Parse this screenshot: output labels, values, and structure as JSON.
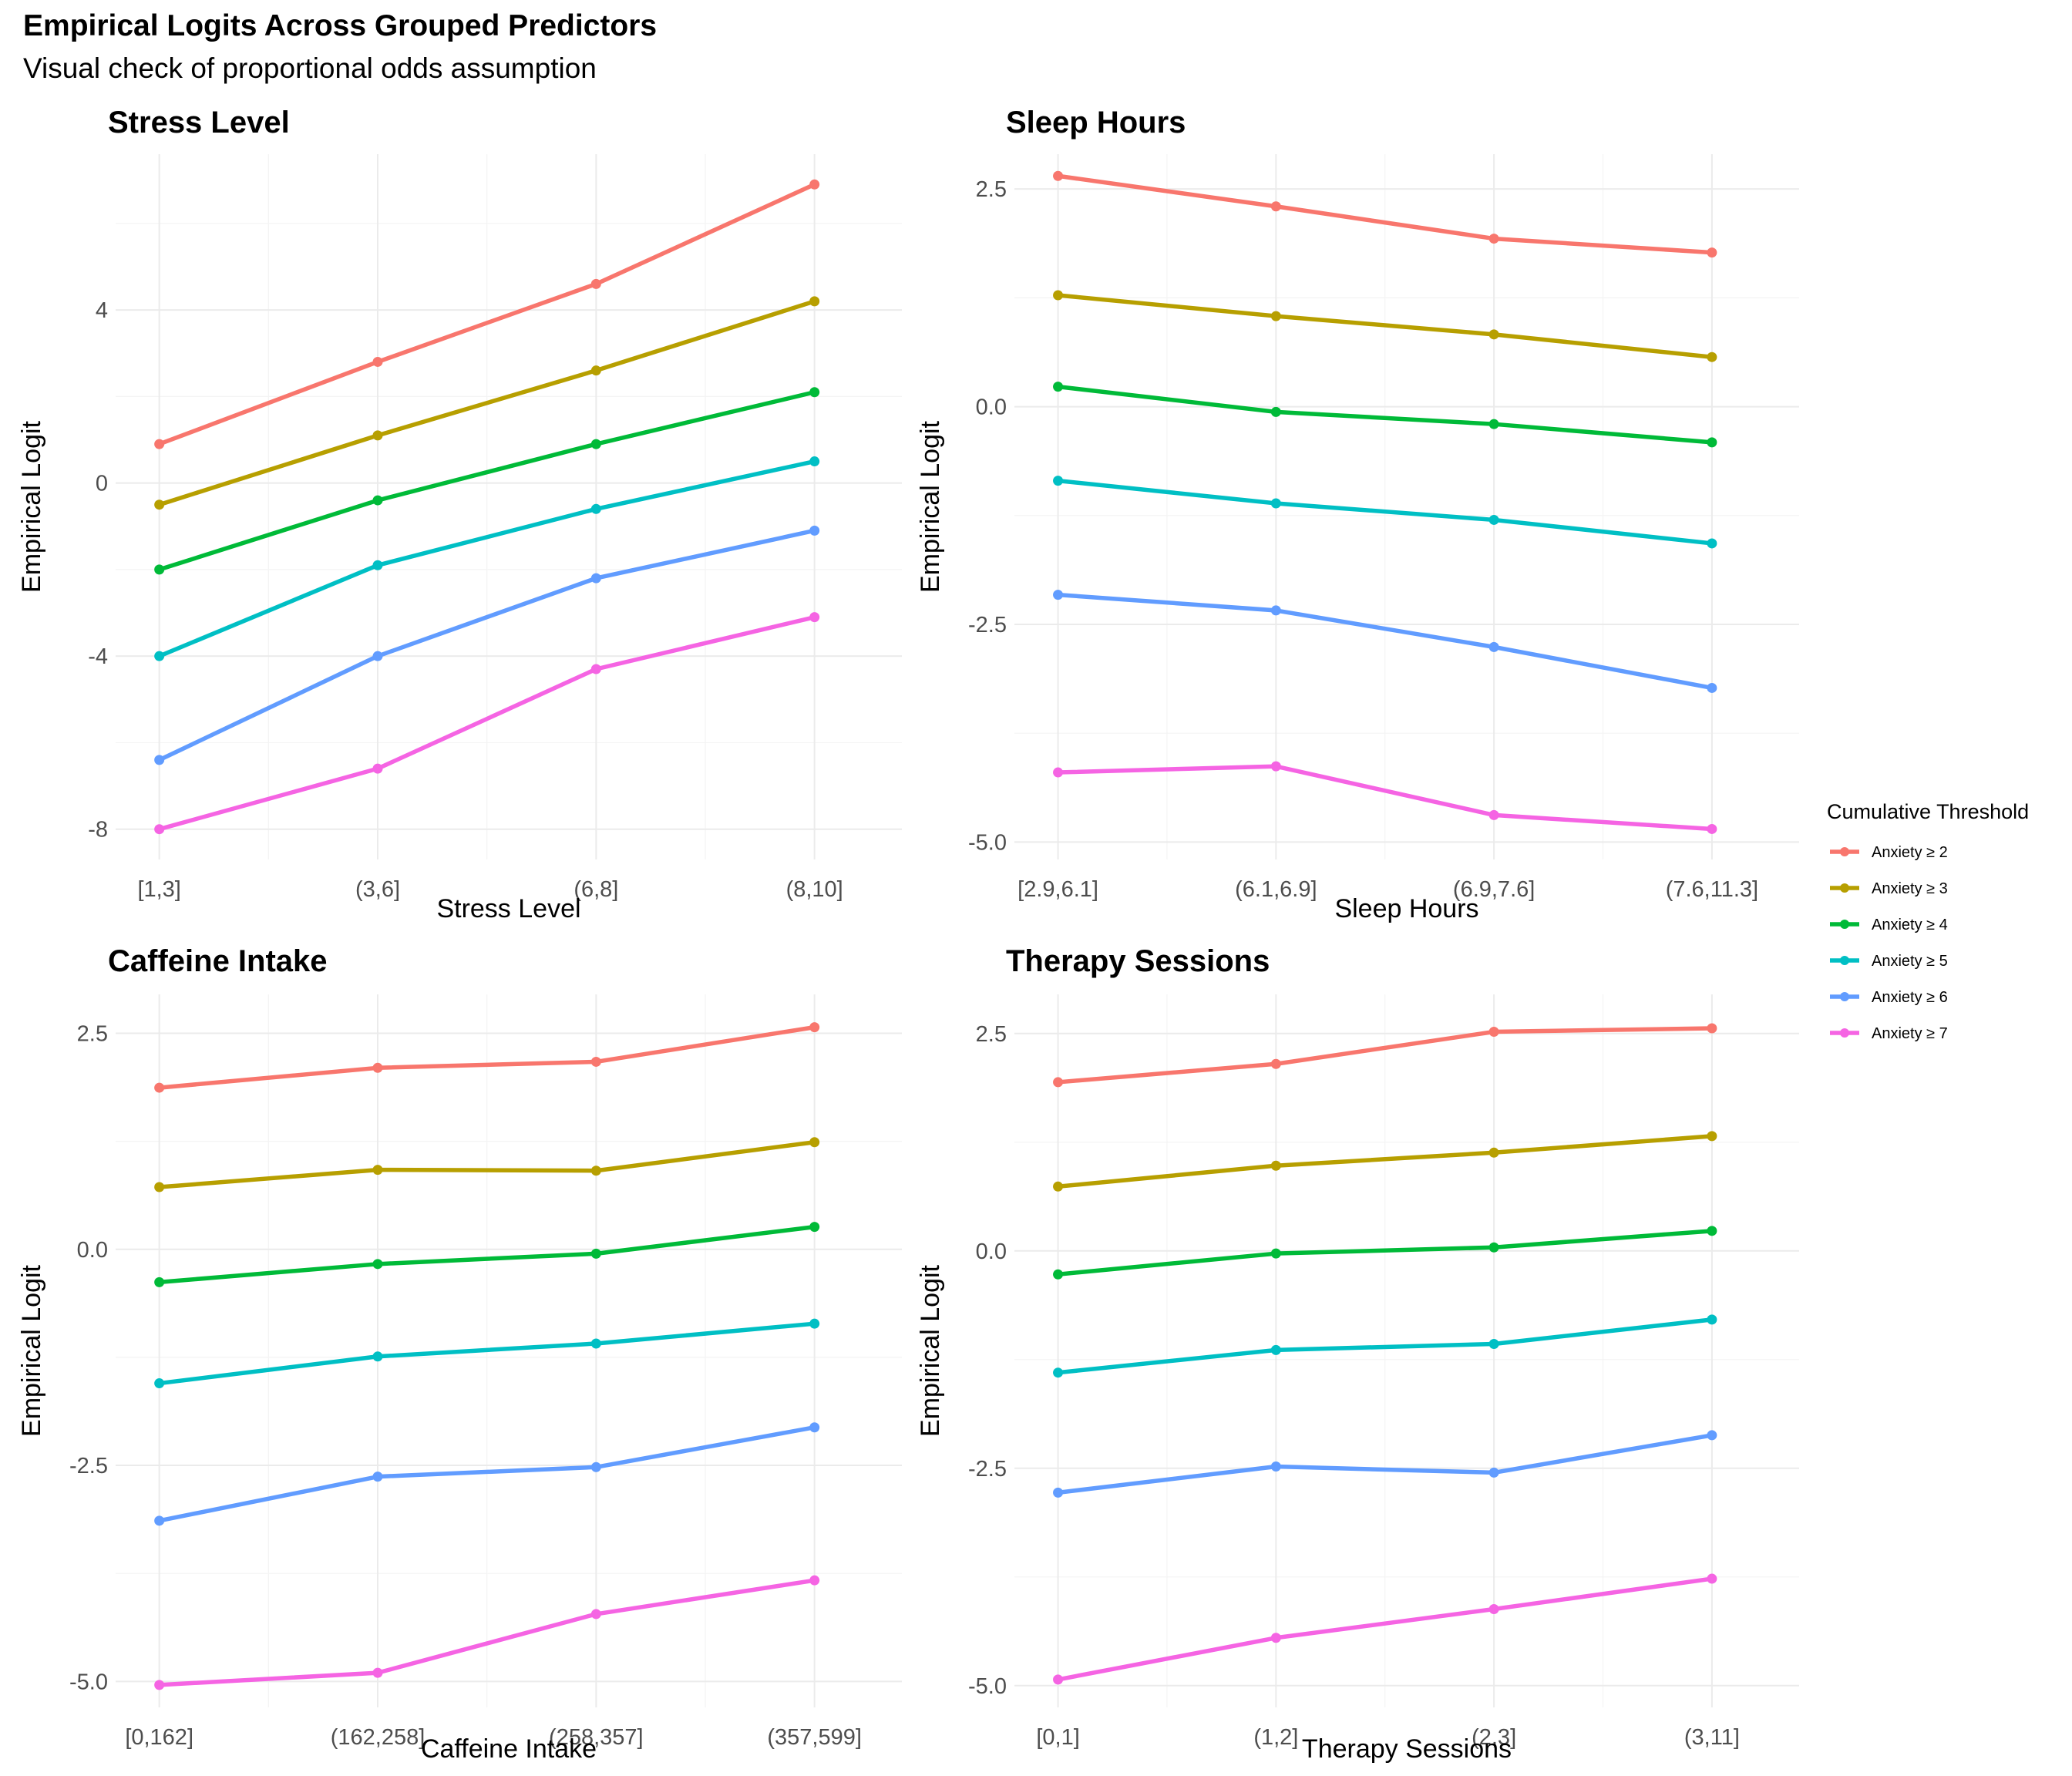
{
  "title": "Empirical Logits Across Grouped Predictors",
  "subtitle": "Visual check of proportional odds assumption",
  "legend": {
    "title": "Cumulative Threshold",
    "placement": "right"
  },
  "colors": {
    "Anxiety ≥ 2": "#F8766D",
    "Anxiety ≥ 3": "#B79F00",
    "Anxiety ≥ 4": "#00BA38",
    "Anxiety ≥ 5": "#00BFC4",
    "Anxiety ≥ 6": "#619CFF",
    "Anxiety ≥ 7": "#F564E3"
  },
  "chart_data": [
    {
      "type": "line",
      "title": "Stress Level",
      "xlabel": "Stress Level",
      "ylabel": "Empirical Logit",
      "categories": [
        "[1,3]",
        "(3,6]",
        "(6,8]",
        "(8,10]"
      ],
      "ylim": [
        -8.7,
        7.6
      ],
      "yticks": [
        4,
        0,
        -4,
        -8
      ],
      "ytick_labels": [
        "4",
        "0",
        "-4",
        "-8"
      ],
      "grid": true,
      "series": [
        {
          "name": "Anxiety ≥ 2",
          "values": [
            0.9,
            2.8,
            4.6,
            6.9
          ]
        },
        {
          "name": "Anxiety ≥ 3",
          "values": [
            -0.5,
            1.1,
            2.6,
            4.2
          ]
        },
        {
          "name": "Anxiety ≥ 4",
          "values": [
            -2.0,
            -0.4,
            0.9,
            2.1
          ]
        },
        {
          "name": "Anxiety ≥ 5",
          "values": [
            -4.0,
            -1.9,
            -0.6,
            0.5
          ]
        },
        {
          "name": "Anxiety ≥ 6",
          "values": [
            -6.4,
            -4.0,
            -2.2,
            -1.1
          ]
        },
        {
          "name": "Anxiety ≥ 7",
          "values": [
            -8.0,
            -6.6,
            -4.3,
            -3.1
          ]
        }
      ]
    },
    {
      "type": "line",
      "title": "Sleep Hours",
      "xlabel": "Sleep Hours",
      "ylabel": "Empirical Logit",
      "categories": [
        "[2.9,6.1]",
        "(6.1,6.9]",
        "(6.9,7.6]",
        "(7.6,11.3]"
      ],
      "ylim": [
        -5.2,
        2.9
      ],
      "yticks": [
        2.5,
        0,
        -2.5,
        -5
      ],
      "ytick_labels": [
        "2.5",
        "0.0",
        "-2.5",
        "-5.0"
      ],
      "grid": true,
      "series": [
        {
          "name": "Anxiety ≥ 2",
          "values": [
            2.65,
            2.3,
            1.93,
            1.77
          ]
        },
        {
          "name": "Anxiety ≥ 3",
          "values": [
            1.28,
            1.04,
            0.83,
            0.57
          ]
        },
        {
          "name": "Anxiety ≥ 4",
          "values": [
            0.23,
            -0.06,
            -0.2,
            -0.41
          ]
        },
        {
          "name": "Anxiety ≥ 5",
          "values": [
            -0.85,
            -1.11,
            -1.3,
            -1.57
          ]
        },
        {
          "name": "Anxiety ≥ 6",
          "values": [
            -2.16,
            -2.34,
            -2.76,
            -3.23
          ]
        },
        {
          "name": "Anxiety ≥ 7",
          "values": [
            -4.2,
            -4.13,
            -4.69,
            -4.85
          ]
        }
      ]
    },
    {
      "type": "line",
      "title": "Caffeine Intake",
      "xlabel": "Caffeine Intake",
      "ylabel": "Empirical Logit",
      "categories": [
        "[0,162]",
        "(162,258]",
        "(258,357]",
        "(357,599]"
      ],
      "ylim": [
        -5.3,
        2.95
      ],
      "yticks": [
        2.5,
        0,
        -2.5,
        -5
      ],
      "ytick_labels": [
        "2.5",
        "0.0",
        "-2.5",
        "-5.0"
      ],
      "grid": true,
      "series": [
        {
          "name": "Anxiety ≥ 2",
          "values": [
            1.87,
            2.1,
            2.17,
            2.57
          ]
        },
        {
          "name": "Anxiety ≥ 3",
          "values": [
            0.72,
            0.92,
            0.91,
            1.24
          ]
        },
        {
          "name": "Anxiety ≥ 4",
          "values": [
            -0.38,
            -0.17,
            -0.05,
            0.26
          ]
        },
        {
          "name": "Anxiety ≥ 5",
          "values": [
            -1.55,
            -1.24,
            -1.09,
            -0.86
          ]
        },
        {
          "name": "Anxiety ≥ 6",
          "values": [
            -3.14,
            -2.63,
            -2.52,
            -2.06
          ]
        },
        {
          "name": "Anxiety ≥ 7",
          "values": [
            -5.04,
            -4.9,
            -4.22,
            -3.83
          ]
        }
      ]
    },
    {
      "type": "line",
      "title": "Therapy Sessions",
      "xlabel": "Therapy Sessions",
      "ylabel": "Empirical Logit",
      "categories": [
        "[0,1]",
        "(1,2]",
        "(2,3]",
        "(3,11]"
      ],
      "ylim": [
        -5.25,
        2.95
      ],
      "yticks": [
        2.5,
        0,
        -2.5,
        -5
      ],
      "ytick_labels": [
        "2.5",
        "0.0",
        "-2.5",
        "-5.0"
      ],
      "grid": true,
      "series": [
        {
          "name": "Anxiety ≥ 2",
          "values": [
            1.94,
            2.15,
            2.52,
            2.56
          ]
        },
        {
          "name": "Anxiety ≥ 3",
          "values": [
            0.74,
            0.98,
            1.13,
            1.32
          ]
        },
        {
          "name": "Anxiety ≥ 4",
          "values": [
            -0.27,
            -0.03,
            0.04,
            0.23
          ]
        },
        {
          "name": "Anxiety ≥ 5",
          "values": [
            -1.4,
            -1.14,
            -1.07,
            -0.79
          ]
        },
        {
          "name": "Anxiety ≥ 6",
          "values": [
            -2.78,
            -2.48,
            -2.55,
            -2.12
          ]
        },
        {
          "name": "Anxiety ≥ 7",
          "values": [
            -4.93,
            -4.45,
            -4.12,
            -3.77
          ]
        }
      ]
    }
  ]
}
